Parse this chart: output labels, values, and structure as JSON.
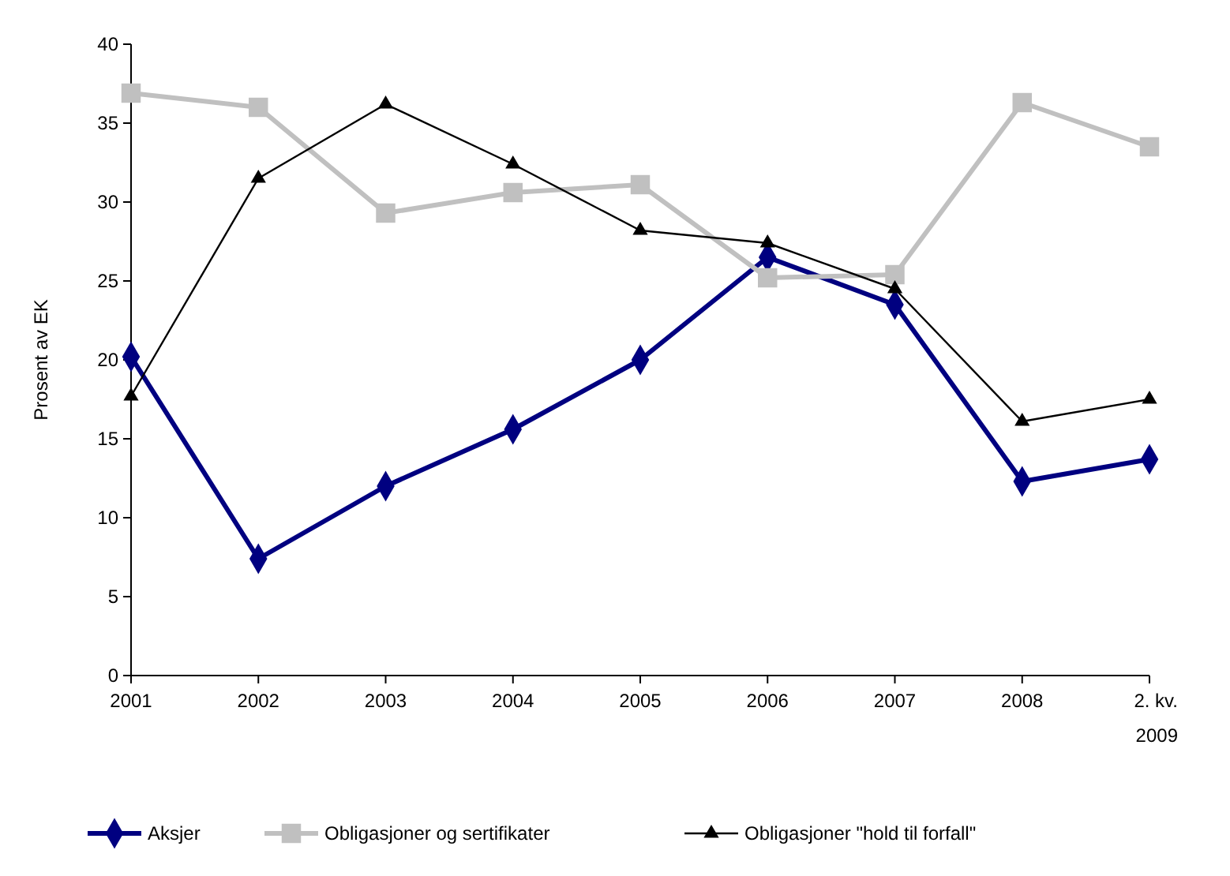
{
  "chart_data": {
    "type": "line",
    "ylabel": "Prosent av EK",
    "categories": [
      "2001",
      "2002",
      "2003",
      "2004",
      "2005",
      "2006",
      "2007",
      "2008",
      "2. kv.\n2009"
    ],
    "ylim": [
      0,
      40
    ],
    "yticks": [
      0,
      5,
      10,
      15,
      20,
      25,
      30,
      35,
      40
    ],
    "grid": false,
    "legend": "bottom",
    "series": [
      {
        "name": "Aksjer",
        "color": "#000080",
        "marker": "diamond",
        "values": [
          20.2,
          7.4,
          12.0,
          15.6,
          20.0,
          26.5,
          23.5,
          12.3,
          13.7
        ]
      },
      {
        "name": "Obligasjoner og sertifikater",
        "color": "#c0c0c0",
        "marker": "square",
        "values": [
          36.9,
          36.0,
          29.3,
          30.6,
          31.1,
          25.2,
          25.4,
          36.3,
          33.5
        ]
      },
      {
        "name": "Obligasjoner \"hold til forfall\"",
        "color": "#000000",
        "marker": "triangle",
        "values": [
          17.7,
          31.5,
          36.2,
          32.4,
          28.2,
          27.4,
          24.5,
          16.1,
          17.5
        ]
      }
    ]
  }
}
